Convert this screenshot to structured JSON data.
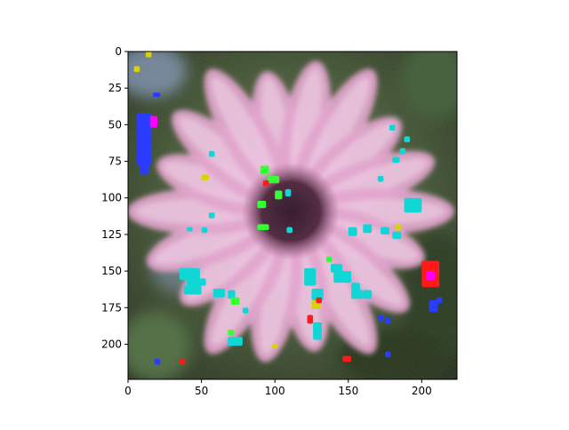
{
  "chart_data": {
    "type": "heatmap",
    "title": "",
    "xlabel": "",
    "ylabel": "",
    "xlim": [
      0,
      224
    ],
    "ylim": [
      224,
      0
    ],
    "x_ticks": [
      0,
      50,
      100,
      150,
      200
    ],
    "y_ticks": [
      0,
      25,
      50,
      75,
      100,
      125,
      150,
      175,
      200
    ],
    "x_tick_labels": [
      "0",
      "50",
      "100",
      "150",
      "200"
    ],
    "y_tick_labels": [
      "0",
      "25",
      "50",
      "75",
      "100",
      "125",
      "150",
      "175",
      "200"
    ],
    "grid": false,
    "image_subject": "pink daisy flower with dark center on blurred green background, overlaid with colored pixel artifacts",
    "colors": {
      "background_dark": "#2c3a22",
      "background_mid": "#5a6b45",
      "petal": "#e6a3cf",
      "petal_light": "#f6dcef",
      "center": "#3b1a2e",
      "artifact_blue": "#2a3cff",
      "artifact_cyan": "#11d6d6",
      "artifact_green": "#33ff33",
      "artifact_red": "#ff1a1a",
      "artifact_magenta": "#ff00ff",
      "artifact_yellow": "#d9d400"
    }
  }
}
